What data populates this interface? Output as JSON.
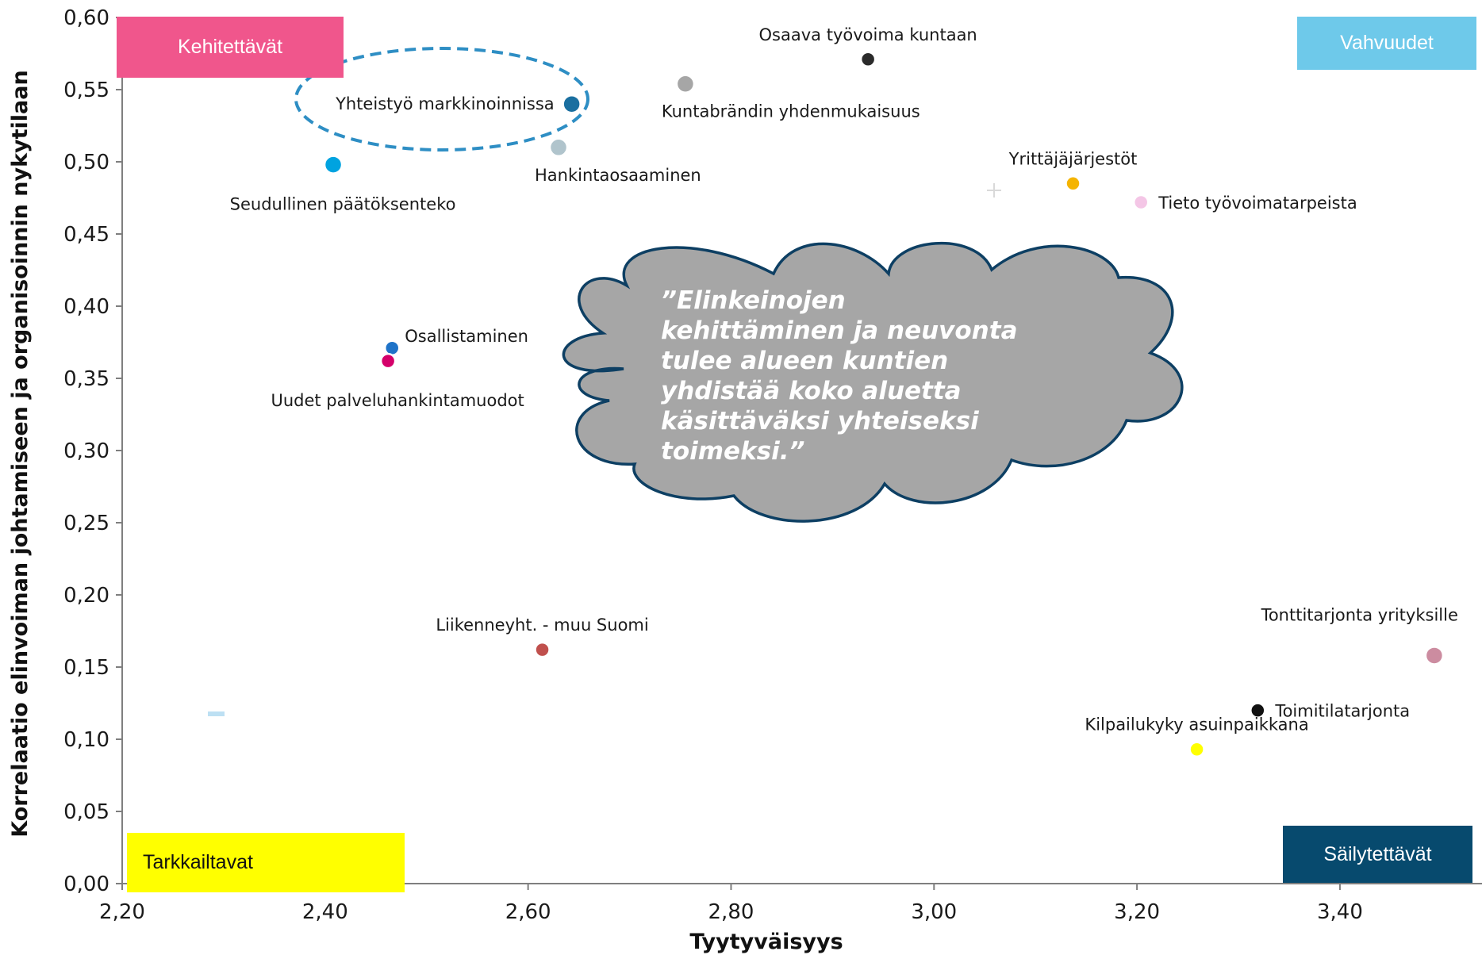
{
  "chart_data": {
    "type": "scatter",
    "xlabel": "Tyytyväisyys",
    "ylabel": "Korrelaatio  elinvoiman johtamiseen ja organisoinnin nykytilaan",
    "xlim": [
      2.2,
      3.54
    ],
    "ylim": [
      0.0,
      0.6
    ],
    "x_ticks": [
      "2,20",
      "2,40",
      "2,60",
      "2,80",
      "3,00",
      "3,20",
      "3,40"
    ],
    "y_ticks": [
      "0,00",
      "0,05",
      "0,10",
      "0,15",
      "0,20",
      "0,25",
      "0,30",
      "0,35",
      "0,40",
      "0,45",
      "0,50",
      "0,55",
      "0,60"
    ],
    "grid": false,
    "points": [
      {
        "label": "Osaava työvoima kuntaan",
        "x": 2.935,
        "y": 0.571,
        "color": "#2b2b2b",
        "label_pos": "above"
      },
      {
        "label": "Kuntabrändin yhdenmukaisuus",
        "x": 2.755,
        "y": 0.554,
        "color": "#a6a6a6",
        "label_pos": "below-right"
      },
      {
        "label": "Yhteistyö markkinoinnissa",
        "x": 2.643,
        "y": 0.54,
        "color": "#1a6fa0",
        "label_pos": "left"
      },
      {
        "label": "Hankintaosaaminen",
        "x": 2.63,
        "y": 0.51,
        "color": "#b0c4cc",
        "label_pos": "below-right"
      },
      {
        "label": "Seudullinen päätöksenteko",
        "x": 2.408,
        "y": 0.498,
        "color": "#00a3e0",
        "label_pos": "below"
      },
      {
        "label": "Yrittäjäjärjestöt",
        "x": 3.137,
        "y": 0.485,
        "color": "#f5b400",
        "label_pos": "above"
      },
      {
        "label": "Tieto työvoimatarpeista",
        "x": 3.204,
        "y": 0.472,
        "color": "#f4c6e6",
        "label_pos": "right"
      },
      {
        "label": "Osallistaminen",
        "x": 2.466,
        "y": 0.371,
        "color": "#1f73c8",
        "label_pos": "above-right"
      },
      {
        "label": "Uudet palveluhankintamuodot",
        "x": 2.462,
        "y": 0.362,
        "color": "#d4006a",
        "label_pos": "below"
      },
      {
        "label": "Liikenneyht. - muu Suomi",
        "x": 2.614,
        "y": 0.162,
        "color": "#c0504d",
        "label_pos": "above"
      },
      {
        "label": "Tonttitarjonta yrityksille",
        "x": 3.493,
        "y": 0.158,
        "color": "#cc8ca0",
        "label_pos": "above-left"
      },
      {
        "label": "Toimitilatarjonta",
        "x": 3.319,
        "y": 0.12,
        "color": "#111111",
        "label_pos": "right"
      },
      {
        "label": "Kilpailukyky asuinpaikkana",
        "x": 3.259,
        "y": 0.093,
        "color": "#ffff00",
        "label_pos": "above"
      }
    ]
  },
  "quadrants": {
    "top_left": {
      "label": "Kehitettävät",
      "bg": "#f0568c",
      "fg": "#ffffff"
    },
    "top_right": {
      "label": "Vahvuudet",
      "bg": "#6ec9ea",
      "fg": "#ffffff"
    },
    "bottom_left": {
      "label": "Tarkkailtavat",
      "bg": "#ffff00",
      "fg": "#111111"
    },
    "bottom_right": {
      "label": "Säilytettävät",
      "bg": "#074a6e",
      "fg": "#ffffff"
    }
  },
  "quote": {
    "lines": [
      "”Elinkeinojen",
      "kehittäminen ja neuvonta",
      "tulee alueen kuntien",
      "yhdistää koko aluetta",
      "käsittäväksi yhteiseksi",
      "toimeksi.”"
    ],
    "cloud_fill": "#a6a6a6",
    "cloud_stroke": "#0d3f63"
  },
  "highlight": {
    "target": "Yhteistyö markkinoinnissa",
    "color": "#2e8ec4"
  }
}
